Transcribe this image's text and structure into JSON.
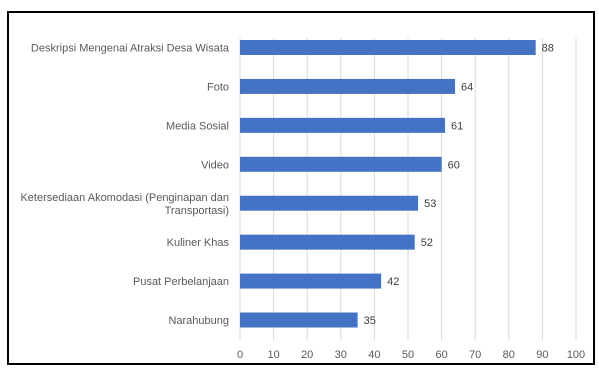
{
  "chart_data": {
    "type": "bar",
    "orientation": "horizontal",
    "categories": [
      "Deskripsi Mengenai Atraksi Desa Wisata",
      "Foto",
      "Media Sosial",
      "Video",
      "Ketersediaan Akomodasi (Penginapan dan Transportasi)",
      "Kuliner Khas",
      "Pusat Perbelanjaan",
      "Narahubung"
    ],
    "values": [
      88,
      64,
      61,
      60,
      53,
      52,
      42,
      35
    ],
    "xlim": [
      0,
      100
    ],
    "xticks": [
      0,
      10,
      20,
      30,
      40,
      50,
      60,
      70,
      80,
      90,
      100
    ],
    "grid": "vertical",
    "legend": "none",
    "bar_color": "#4472C4",
    "grid_color": "#d9d9d9",
    "data_labels": true
  }
}
